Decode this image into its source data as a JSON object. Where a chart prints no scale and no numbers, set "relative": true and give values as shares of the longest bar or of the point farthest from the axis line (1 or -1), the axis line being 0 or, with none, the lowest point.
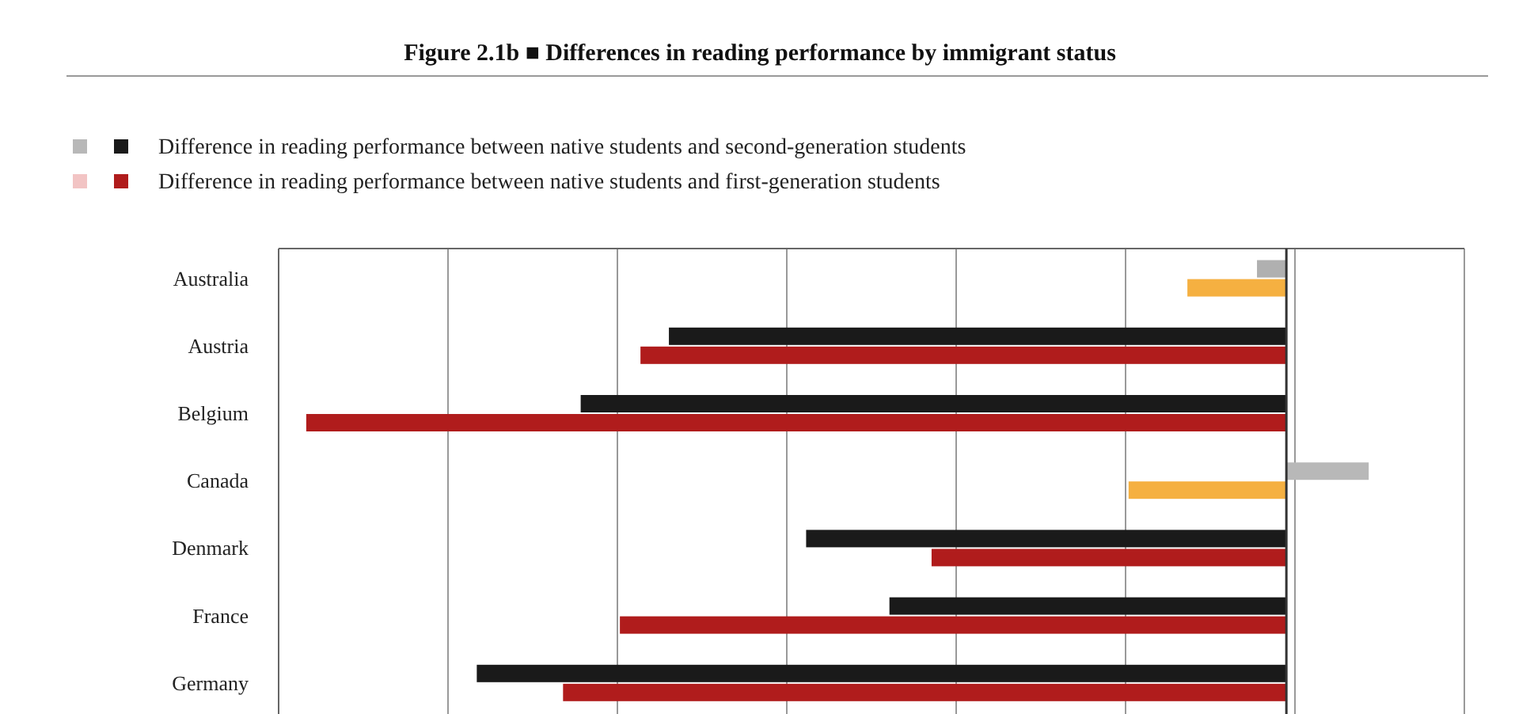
{
  "chart_data": {
    "type": "bar",
    "orientation": "horizontal",
    "relative": true,
    "grid": "x",
    "legend": "top left",
    "title": "Figure 2.1b ■ Differences in reading performance by immigrant status",
    "categories": [
      "Australia",
      "Austria",
      "Belgium",
      "Canada",
      "Denmark",
      "France",
      "Germany"
    ],
    "series": [
      {
        "name": "Difference in reading performance between native students and second-generation students",
        "color": "#1a1a1a",
        "colors": [
          "#b0b0b0",
          "#1a1a1a",
          "#1a1a1a",
          "#b8b8b8",
          "#1a1a1a",
          "#1a1a1a",
          "#1a1a1a"
        ],
        "values": [
          -0.03,
          -0.63,
          -0.72,
          0.084,
          -0.49,
          -0.405,
          -0.826
        ]
      },
      {
        "name": "Difference in reading performance between native students and first-generation students",
        "color": "#b01c1c",
        "colors": [
          "#f5b041",
          "#b01c1c",
          "#b01c1c",
          "#f5b041",
          "#b01c1c",
          "#b01c1c",
          "#b01c1c"
        ],
        "values": [
          -0.101,
          -0.659,
          -1,
          -0.161,
          -0.362,
          -0.68,
          -0.738
        ]
      }
    ]
  }
}
